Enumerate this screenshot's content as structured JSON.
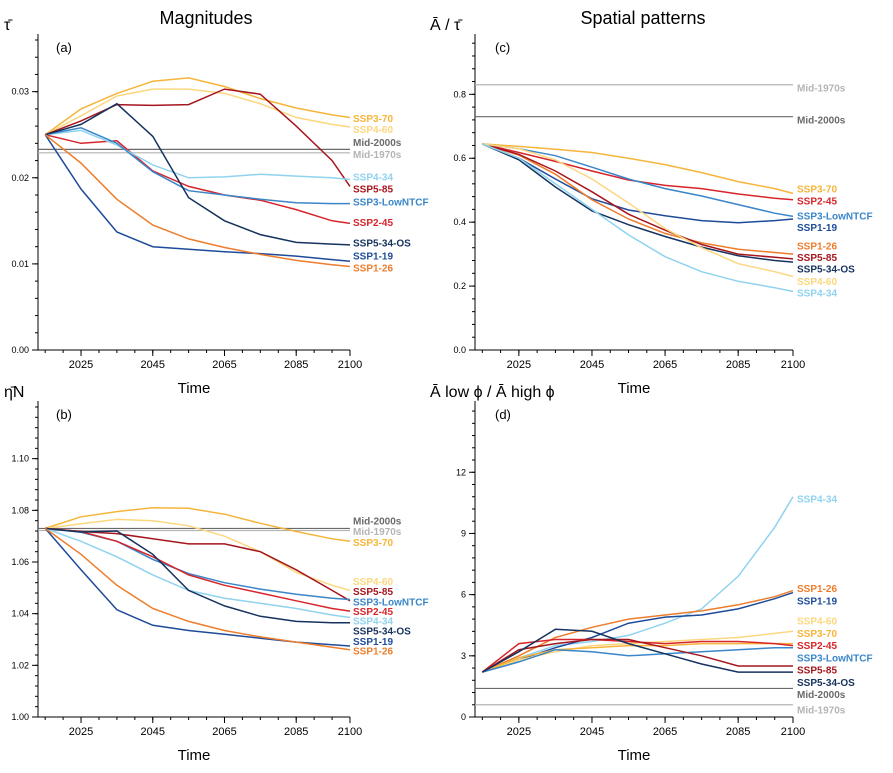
{
  "figure": {
    "title_left": "Magnitudes",
    "title_right": "Spatial patterns"
  },
  "colors": {
    "SSP3-70": "#f6b53a",
    "SSP4-60": "#fcd77f",
    "SSP5-85": "#a5161d",
    "SSP2-45": "#d7252b",
    "SSP4-34": "#8fd3ef",
    "SSP3-LowNTCF": "#3a86c9",
    "SSP1-19": "#1e4b9a",
    "SSP5-34-OS": "#16325e",
    "SSP1-26": "#ee7d2c",
    "Mid-2000s": "#6a6a6a",
    "Mid-1970s": "#b4b4b4"
  },
  "chart_data": [
    {
      "type": "line",
      "panel": "(a)",
      "ylabel": "τ̄",
      "xlabel": "Time",
      "x": [
        2015,
        2025,
        2035,
        2045,
        2055,
        2065,
        2075,
        2085,
        2095,
        2100
      ],
      "xticks": [
        "2025",
        "2045",
        "2065",
        "2085",
        "2100"
      ],
      "ylim": [
        0.0,
        0.036
      ],
      "yticks": [
        "0.00",
        "0.01",
        "0.02",
        "0.03"
      ],
      "series": [
        {
          "name": "SSP3-70",
          "values": [
            0.025,
            0.028,
            0.0298,
            0.0312,
            0.0316,
            0.0306,
            0.0292,
            0.0281,
            0.0273,
            0.027
          ]
        },
        {
          "name": "SSP4-60",
          "values": [
            0.025,
            0.0272,
            0.0295,
            0.0303,
            0.0303,
            0.0298,
            0.0286,
            0.027,
            0.0262,
            0.0259
          ]
        },
        {
          "name": "SSP5-85",
          "values": [
            0.025,
            0.0266,
            0.0285,
            0.0284,
            0.0285,
            0.0303,
            0.0297,
            0.026,
            0.022,
            0.019
          ]
        },
        {
          "name": "SSP2-45",
          "values": [
            0.025,
            0.024,
            0.0243,
            0.0208,
            0.019,
            0.018,
            0.0174,
            0.0163,
            0.015,
            0.0147
          ]
        },
        {
          "name": "SSP4-34",
          "values": [
            0.025,
            0.0255,
            0.0238,
            0.0215,
            0.02,
            0.0201,
            0.0204,
            0.0202,
            0.02,
            0.0198
          ]
        },
        {
          "name": "SSP3-LowNTCF",
          "values": [
            0.025,
            0.0258,
            0.024,
            0.0207,
            0.0185,
            0.018,
            0.0175,
            0.0171,
            0.017,
            0.017
          ]
        },
        {
          "name": "SSP1-19",
          "values": [
            0.025,
            0.0187,
            0.0137,
            0.012,
            0.0117,
            0.0114,
            0.0112,
            0.0109,
            0.0105,
            0.0103
          ]
        },
        {
          "name": "SSP5-34-OS",
          "values": [
            0.025,
            0.0262,
            0.0286,
            0.0248,
            0.0177,
            0.015,
            0.0134,
            0.0125,
            0.0123,
            0.0122
          ]
        },
        {
          "name": "SSP1-26",
          "values": [
            0.025,
            0.0217,
            0.0175,
            0.0145,
            0.0129,
            0.0119,
            0.0111,
            0.0104,
            0.0099,
            0.0097
          ]
        }
      ],
      "references": [
        {
          "name": "Mid-2000s",
          "value": 0.0233
        },
        {
          "name": "Mid-1970s",
          "value": 0.0229
        }
      ],
      "label_order": [
        {
          "name": "SSP3-70",
          "value": 0.0269
        },
        {
          "name": "SSP4-60",
          "value": 0.0256
        },
        {
          "name": "Mid-2000s",
          "value": 0.0241
        },
        {
          "name": "Mid-1970s",
          "value": 0.0227
        },
        {
          "name": "SSP4-34",
          "value": 0.0201
        },
        {
          "name": "SSP5-85",
          "value": 0.0187
        },
        {
          "name": "SSP3-LowNTCF",
          "value": 0.0172
        },
        {
          "name": "SSP2-45",
          "value": 0.0148
        },
        {
          "name": "SSP5-34-OS",
          "value": 0.0124
        },
        {
          "name": "SSP1-19",
          "value": 0.0109
        },
        {
          "name": "SSP1-26",
          "value": 0.0095
        }
      ]
    },
    {
      "type": "line",
      "panel": "(c)",
      "ylabel": "Ā / τ̄",
      "xlabel": "Time",
      "x": [
        2015,
        2025,
        2035,
        2045,
        2055,
        2065,
        2075,
        2085,
        2095,
        2100
      ],
      "xticks": [
        "2025",
        "2045",
        "2065",
        "2085",
        "2100"
      ],
      "ylim": [
        0.0,
        0.97
      ],
      "yticks": [
        "0.0",
        "0.2",
        "0.4",
        "0.6",
        "0.8"
      ],
      "series": [
        {
          "name": "SSP3-70",
          "values": [
            0.645,
            0.637,
            0.628,
            0.618,
            0.6,
            0.58,
            0.555,
            0.527,
            0.505,
            0.49
          ]
        },
        {
          "name": "SSP2-45",
          "values": [
            0.645,
            0.618,
            0.59,
            0.56,
            0.532,
            0.515,
            0.505,
            0.488,
            0.475,
            0.47
          ]
        },
        {
          "name": "SSP3-LowNTCF",
          "values": [
            0.645,
            0.63,
            0.608,
            0.572,
            0.535,
            0.505,
            0.482,
            0.455,
            0.428,
            0.418
          ]
        },
        {
          "name": "SSP1-19",
          "values": [
            0.645,
            0.6,
            0.535,
            0.473,
            0.438,
            0.42,
            0.405,
            0.398,
            0.405,
            0.41
          ]
        },
        {
          "name": "SSP1-26",
          "values": [
            0.645,
            0.61,
            0.55,
            0.47,
            0.41,
            0.365,
            0.335,
            0.315,
            0.305,
            0.3
          ]
        },
        {
          "name": "SSP5-85",
          "values": [
            0.645,
            0.612,
            0.56,
            0.495,
            0.425,
            0.375,
            0.33,
            0.3,
            0.29,
            0.285
          ]
        },
        {
          "name": "SSP5-34-OS",
          "values": [
            0.645,
            0.595,
            0.51,
            0.435,
            0.392,
            0.355,
            0.322,
            0.295,
            0.28,
            0.275
          ]
        },
        {
          "name": "SSP4-60",
          "values": [
            0.645,
            0.63,
            0.595,
            0.535,
            0.46,
            0.38,
            0.32,
            0.27,
            0.245,
            0.23
          ]
        },
        {
          "name": "SSP4-34",
          "values": [
            0.645,
            0.6,
            0.52,
            0.44,
            0.36,
            0.292,
            0.245,
            0.215,
            0.195,
            0.183
          ]
        }
      ],
      "references": [
        {
          "name": "Mid-1970s",
          "value": 0.83
        },
        {
          "name": "Mid-2000s",
          "value": 0.73
        }
      ],
      "label_order": [
        {
          "name": "Mid-1970s",
          "value": 0.82
        },
        {
          "name": "Mid-2000s",
          "value": 0.72
        },
        {
          "name": "SSP3-70",
          "value": 0.503
        },
        {
          "name": "SSP2-45",
          "value": 0.466
        },
        {
          "name": "SSP3-LowNTCF",
          "value": 0.419
        },
        {
          "name": "SSP1-19",
          "value": 0.383
        },
        {
          "name": "SSP1-26",
          "value": 0.325
        },
        {
          "name": "SSP5-85",
          "value": 0.29
        },
        {
          "name": "SSP5-34-OS",
          "value": 0.253
        },
        {
          "name": "SSP4-60",
          "value": 0.215
        },
        {
          "name": "SSP4-34",
          "value": 0.178
        }
      ]
    },
    {
      "type": "line",
      "panel": "(b)",
      "ylabel": "η̄N",
      "xlabel": "Time",
      "x": [
        2015,
        2025,
        2035,
        2045,
        2055,
        2065,
        2075,
        2085,
        2095,
        2100
      ],
      "xticks": [
        "2025",
        "2045",
        "2065",
        "2085",
        "2100"
      ],
      "ylim": [
        1.0,
        1.12
      ],
      "yticks": [
        "1.00",
        "1.02",
        "1.04",
        "1.06",
        "1.08",
        "1.10"
      ],
      "series": [
        {
          "name": "SSP3-70",
          "values": [
            1.073,
            1.0775,
            1.0795,
            1.081,
            1.0808,
            1.0785,
            1.075,
            1.0718,
            1.069,
            1.068
          ]
        },
        {
          "name": "SSP4-60",
          "values": [
            1.073,
            1.0748,
            1.0765,
            1.076,
            1.074,
            1.07,
            1.064,
            1.056,
            1.051,
            1.049
          ]
        },
        {
          "name": "SSP5-85",
          "values": [
            1.073,
            1.0718,
            1.071,
            1.069,
            1.067,
            1.067,
            1.064,
            1.057,
            1.049,
            1.045
          ]
        },
        {
          "name": "SSP3-LowNTCF",
          "values": [
            1.073,
            1.0715,
            1.068,
            1.061,
            1.0555,
            1.052,
            1.0495,
            1.0475,
            1.046,
            1.0455
          ]
        },
        {
          "name": "SSP2-45",
          "values": [
            1.073,
            1.0718,
            1.068,
            1.062,
            1.055,
            1.051,
            1.048,
            1.045,
            1.042,
            1.041
          ]
        },
        {
          "name": "SSP4-34",
          "values": [
            1.073,
            1.068,
            1.062,
            1.055,
            1.049,
            1.046,
            1.044,
            1.042,
            1.0395,
            1.0385
          ]
        },
        {
          "name": "SSP5-34-OS",
          "values": [
            1.073,
            1.0716,
            1.072,
            1.063,
            1.049,
            1.043,
            1.039,
            1.037,
            1.0365,
            1.0365
          ]
        },
        {
          "name": "SSP1-19",
          "values": [
            1.073,
            1.057,
            1.0415,
            1.0355,
            1.0335,
            1.032,
            1.0305,
            1.029,
            1.028,
            1.0275
          ]
        },
        {
          "name": "SSP1-26",
          "values": [
            1.073,
            1.063,
            1.051,
            1.042,
            1.037,
            1.0335,
            1.031,
            1.029,
            1.027,
            1.026
          ]
        }
      ],
      "references": [
        {
          "name": "Mid-2000s",
          "value": 1.073
        },
        {
          "name": "Mid-1970s",
          "value": 1.0722
        }
      ],
      "label_order": [
        {
          "name": "Mid-2000s",
          "value": 1.0758
        },
        {
          "name": "Mid-1970s",
          "value": 1.0718
        },
        {
          "name": "SSP3-70",
          "value": 1.0675
        },
        {
          "name": "SSP4-60",
          "value": 1.0524
        },
        {
          "name": "SSP5-85",
          "value": 1.0486
        },
        {
          "name": "SSP3-LowNTCF",
          "value": 1.0446
        },
        {
          "name": "SSP2-45",
          "value": 1.0408
        },
        {
          "name": "SSP4-34",
          "value": 1.0371
        },
        {
          "name": "SSP5-34-OS",
          "value": 1.0332
        },
        {
          "name": "SSP1-19",
          "value": 1.0293
        },
        {
          "name": "SSP1-26",
          "value": 1.0255
        }
      ]
    },
    {
      "type": "line",
      "panel": "(d)",
      "ylabel": "Ā low ϕ / Ā high ϕ",
      "xlabel": "Time",
      "x": [
        2015,
        2025,
        2035,
        2045,
        2055,
        2065,
        2075,
        2085,
        2095,
        2100
      ],
      "xticks": [
        "2025",
        "2045",
        "2065",
        "2085",
        "2100"
      ],
      "ylim": [
        0,
        15.2
      ],
      "yticks": [
        "0",
        "3",
        "6",
        "9",
        "12"
      ],
      "series": [
        {
          "name": "SSP4-34",
          "values": [
            2.2,
            2.9,
            3.5,
            3.7,
            4.0,
            4.6,
            5.3,
            6.9,
            9.3,
            10.8
          ]
        },
        {
          "name": "SSP1-26",
          "values": [
            2.2,
            3.0,
            3.9,
            4.4,
            4.8,
            5.0,
            5.2,
            5.5,
            5.9,
            6.2
          ]
        },
        {
          "name": "SSP1-19",
          "values": [
            2.2,
            2.8,
            3.4,
            3.9,
            4.6,
            4.9,
            5.0,
            5.3,
            5.8,
            6.1
          ]
        },
        {
          "name": "SSP4-60",
          "values": [
            2.2,
            2.8,
            3.2,
            3.5,
            3.6,
            3.7,
            3.8,
            3.9,
            4.1,
            4.2
          ]
        },
        {
          "name": "SSP3-70",
          "values": [
            2.2,
            2.9,
            3.3,
            3.4,
            3.5,
            3.5,
            3.6,
            3.6,
            3.6,
            3.6
          ]
        },
        {
          "name": "SSP2-45",
          "values": [
            2.2,
            3.6,
            3.8,
            3.8,
            3.7,
            3.6,
            3.7,
            3.7,
            3.6,
            3.5
          ]
        },
        {
          "name": "SSP3-LowNTCF",
          "values": [
            2.2,
            2.7,
            3.3,
            3.2,
            3.0,
            3.1,
            3.2,
            3.3,
            3.4,
            3.4
          ]
        },
        {
          "name": "SSP5-85",
          "values": [
            2.2,
            3.3,
            3.6,
            3.8,
            3.8,
            3.4,
            3.0,
            2.5,
            2.5,
            2.5
          ]
        },
        {
          "name": "SSP5-34-OS",
          "values": [
            2.2,
            3.2,
            4.3,
            4.2,
            3.6,
            3.1,
            2.6,
            2.2,
            2.2,
            2.2
          ]
        }
      ],
      "references": [
        {
          "name": "Mid-2000s",
          "value": 1.4
        },
        {
          "name": "Mid-1970s",
          "value": 0.6
        }
      ],
      "label_order": [
        {
          "name": "SSP4-34",
          "value": 10.7
        },
        {
          "name": "SSP1-26",
          "value": 6.3
        },
        {
          "name": "SSP1-19",
          "value": 5.7
        },
        {
          "name": "SSP4-60",
          "value": 4.7
        },
        {
          "name": "SSP3-70",
          "value": 4.1
        },
        {
          "name": "SSP2-45",
          "value": 3.5
        },
        {
          "name": "SSP3-LowNTCF",
          "value": 2.9
        },
        {
          "name": "SSP5-85",
          "value": 2.3
        },
        {
          "name": "SSP5-34-OS",
          "value": 1.7
        },
        {
          "name": "Mid-2000s",
          "value": 1.1
        },
        {
          "name": "Mid-1970s",
          "value": 0.35
        }
      ]
    }
  ]
}
